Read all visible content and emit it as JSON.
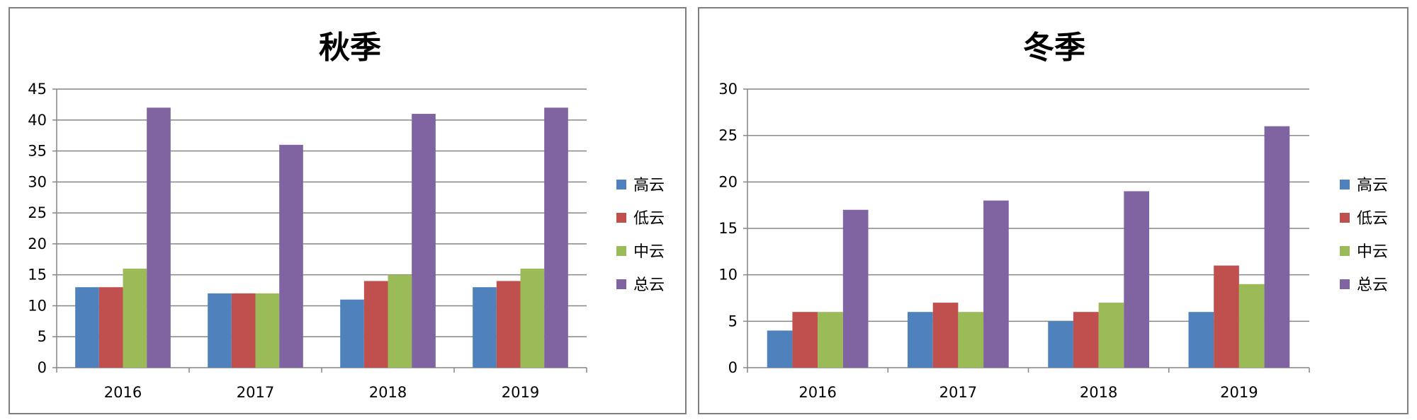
{
  "chart_data": [
    {
      "type": "bar",
      "title": "秋季",
      "categories": [
        "2016",
        "2017",
        "2018",
        "2019"
      ],
      "series": [
        {
          "name": "高云",
          "values": [
            13,
            12,
            11,
            13
          ]
        },
        {
          "name": "低云",
          "values": [
            13,
            12,
            14,
            14
          ]
        },
        {
          "name": "中云",
          "values": [
            16,
            12,
            15,
            16
          ]
        },
        {
          "name": "总云",
          "values": [
            42,
            36,
            41,
            42
          ]
        }
      ],
      "yticks": [
        "0",
        "5",
        "10",
        "15",
        "20",
        "25",
        "30",
        "35",
        "40",
        "45"
      ],
      "ylim": [
        0,
        45
      ],
      "xlabel": "",
      "ylabel": "",
      "grid": true,
      "legend": "right"
    },
    {
      "type": "bar",
      "title": "冬季",
      "categories": [
        "2016",
        "2017",
        "2018",
        "2019"
      ],
      "series": [
        {
          "name": "高云",
          "values": [
            4,
            6,
            5,
            6
          ]
        },
        {
          "name": "低云",
          "values": [
            6,
            7,
            6,
            11
          ]
        },
        {
          "name": "中云",
          "values": [
            6,
            6,
            7,
            9
          ]
        },
        {
          "name": "总云",
          "values": [
            17,
            18,
            19,
            26
          ]
        }
      ],
      "yticks": [
        "0",
        "5",
        "10",
        "15",
        "20",
        "25",
        "30"
      ],
      "ylim": [
        0,
        30
      ],
      "xlabel": "",
      "ylabel": "",
      "grid": true,
      "legend": "right"
    }
  ],
  "colors": {
    "series": [
      "#4f81bd",
      "#c0504d",
      "#9bbb59",
      "#8064a2"
    ],
    "grid": "#868686",
    "axis": "#868686"
  }
}
